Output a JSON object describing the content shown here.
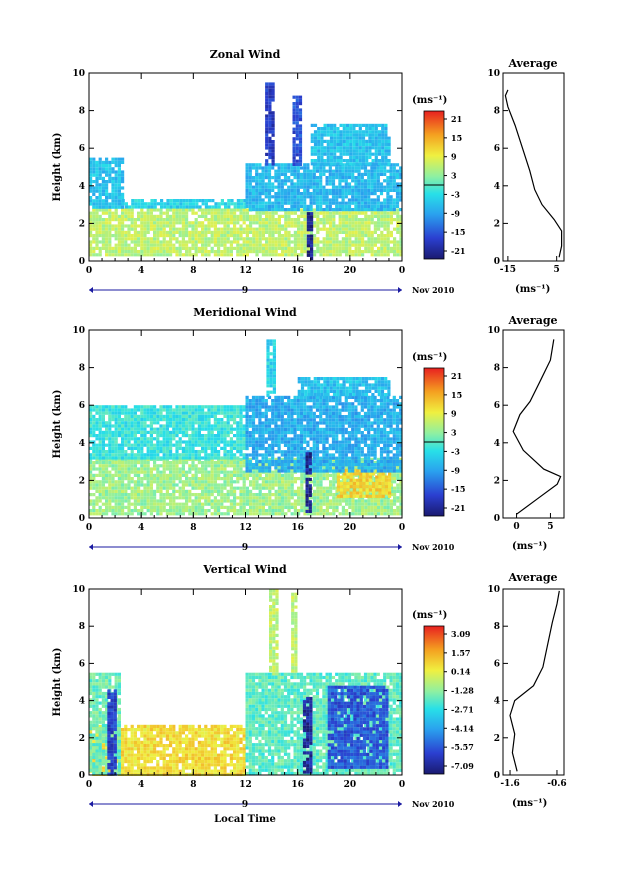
{
  "chart_data": [
    {
      "type": "heatmap",
      "title": "Zonal Wind",
      "ylabel": "Height (km)",
      "xlim": [
        0,
        24
      ],
      "ylim": [
        0,
        10
      ],
      "x_ticks": [
        "0",
        "4",
        "8",
        "12",
        "16",
        "20",
        "0"
      ],
      "y_ticks": [
        "0",
        "2",
        "4",
        "6",
        "8",
        "10"
      ],
      "date_label": "Nov 2010",
      "day_marker": "9",
      "colorbar": {
        "unit": "(ms⁻¹)",
        "ticks": [
          "21",
          "15",
          "9",
          "3",
          "-3",
          "-9",
          "-15",
          "-21"
        ],
        "range": [
          -24,
          24
        ]
      },
      "regions": [
        {
          "t": [
            0,
            24
          ],
          "h": [
            0.4,
            2.8
          ],
          "value": 6
        },
        {
          "t": [
            0,
            2.5
          ],
          "h": [
            2.8,
            5.5
          ],
          "value": -6
        },
        {
          "t": [
            2.5,
            12
          ],
          "h": [
            2.8,
            3.3
          ],
          "value": -4
        },
        {
          "t": [
            12,
            24
          ],
          "h": [
            2.8,
            5.2
          ],
          "value": -7
        },
        {
          "t": [
            13.5,
            14.2
          ],
          "h": [
            5.2,
            9.5
          ],
          "value": -18
        },
        {
          "t": [
            15.6,
            16.2
          ],
          "h": [
            5.2,
            8.8
          ],
          "value": -16
        },
        {
          "t": [
            17,
            23
          ],
          "h": [
            5.2,
            7.3
          ],
          "value": -6
        },
        {
          "t": [
            16.7,
            17.0
          ],
          "h": [
            0.2,
            2.6
          ],
          "value": -22
        }
      ],
      "average_profile": {
        "title": "Average",
        "xlabel": "(ms⁻¹)",
        "x_ticks": [
          "-15",
          "5"
        ],
        "xlim": [
          -17,
          8
        ],
        "points": [
          [
            6,
            0.2
          ],
          [
            7,
            0.8
          ],
          [
            7,
            1.6
          ],
          [
            4,
            2.2
          ],
          [
            -1,
            3.0
          ],
          [
            -4,
            3.8
          ],
          [
            -6,
            4.8
          ],
          [
            -9,
            6.0
          ],
          [
            -12,
            7.2
          ],
          [
            -15,
            8.2
          ],
          [
            -16,
            8.8
          ],
          [
            -15,
            9.1
          ]
        ]
      }
    },
    {
      "type": "heatmap",
      "title": "Meridional Wind",
      "ylabel": "Height (km)",
      "xlim": [
        0,
        24
      ],
      "ylim": [
        0,
        10
      ],
      "x_ticks": [
        "0",
        "4",
        "8",
        "12",
        "16",
        "20",
        "0"
      ],
      "y_ticks": [
        "0",
        "2",
        "4",
        "6",
        "8",
        "10"
      ],
      "date_label": "Nov 2010",
      "day_marker": "9",
      "colorbar": {
        "unit": "(ms⁻¹)",
        "ticks": [
          "21",
          "15",
          "9",
          "3",
          "-3",
          "-9",
          "-15",
          "-21"
        ],
        "range": [
          -24,
          24
        ]
      },
      "regions": [
        {
          "t": [
            0,
            24
          ],
          "h": [
            0.2,
            3.2
          ],
          "value": 4
        },
        {
          "t": [
            19,
            23
          ],
          "h": [
            1.2,
            2.6
          ],
          "value": 12
        },
        {
          "t": [
            0,
            12
          ],
          "h": [
            3.2,
            6.0
          ],
          "value": -2
        },
        {
          "t": [
            12,
            24
          ],
          "h": [
            2.5,
            6.5
          ],
          "value": -8
        },
        {
          "t": [
            13.6,
            14.2
          ],
          "h": [
            6.5,
            9.5
          ],
          "value": -4
        },
        {
          "t": [
            16,
            23
          ],
          "h": [
            6.5,
            7.5
          ],
          "value": -6
        },
        {
          "t": [
            16.6,
            17.0
          ],
          "h": [
            0.3,
            3.5
          ],
          "value": -22
        }
      ],
      "average_profile": {
        "title": "Average",
        "xlabel": "(ms⁻¹)",
        "x_ticks": [
          "0",
          "5"
        ],
        "xlim": [
          -2,
          7
        ],
        "points": [
          [
            0,
            0.2
          ],
          [
            3,
            1.0
          ],
          [
            6,
            1.8
          ],
          [
            6.5,
            2.2
          ],
          [
            4,
            2.6
          ],
          [
            1,
            3.6
          ],
          [
            -0.5,
            4.6
          ],
          [
            0.5,
            5.5
          ],
          [
            2,
            6.2
          ],
          [
            3.5,
            7.3
          ],
          [
            5,
            8.4
          ],
          [
            5.5,
            9.5
          ]
        ]
      }
    },
    {
      "type": "heatmap",
      "title": "Vertical Wind",
      "ylabel": "Height (km)",
      "xlabel": "Local Time",
      "xlim": [
        0,
        24
      ],
      "ylim": [
        0,
        10
      ],
      "x_ticks": [
        "0",
        "4",
        "8",
        "12",
        "16",
        "20",
        "0"
      ],
      "y_ticks": [
        "0",
        "2",
        "4",
        "6",
        "8",
        "10"
      ],
      "date_label": "Nov 2010",
      "day_marker": "9",
      "colorbar": {
        "unit": "(ms⁻¹)",
        "ticks": [
          "3.09",
          "1.57",
          "0.14",
          "-1.28",
          "-2.71",
          "-4.14",
          "-5.57",
          "-7.09"
        ],
        "range": [
          -8.2,
          4.1
        ]
      },
      "regions": [
        {
          "t": [
            0,
            12
          ],
          "h": [
            0.1,
            2.7
          ],
          "value": 0.8
        },
        {
          "t": [
            0,
            2.3
          ],
          "h": [
            0.1,
            5.5
          ],
          "value": -1.8
        },
        {
          "t": [
            1.4,
            2.0
          ],
          "h": [
            0.1,
            4.6
          ],
          "value": -6.5
        },
        {
          "t": [
            12,
            24
          ],
          "h": [
            0.1,
            5.5
          ],
          "value": -2.0
        },
        {
          "t": [
            13.8,
            14.3
          ],
          "h": [
            5.5,
            10
          ],
          "value": -0.5
        },
        {
          "t": [
            15.5,
            15.9
          ],
          "h": [
            5.5,
            9.8
          ],
          "value": -0.5
        },
        {
          "t": [
            16.4,
            16.9
          ],
          "h": [
            0.1,
            4.2
          ],
          "value": -7.5
        },
        {
          "t": [
            18.3,
            22.8
          ],
          "h": [
            0.4,
            4.8
          ],
          "value": -6.0
        }
      ],
      "average_profile": {
        "title": "Average",
        "xlabel": "(ms⁻¹)",
        "x_ticks": [
          "-1.6",
          "-0.6"
        ],
        "xlim": [
          -1.75,
          -0.45
        ],
        "points": [
          [
            -1.45,
            0.2
          ],
          [
            -1.55,
            1.2
          ],
          [
            -1.5,
            2.2
          ],
          [
            -1.6,
            3.2
          ],
          [
            -1.5,
            4.0
          ],
          [
            -1.1,
            4.8
          ],
          [
            -0.9,
            5.8
          ],
          [
            -0.8,
            7.0
          ],
          [
            -0.7,
            8.2
          ],
          [
            -0.6,
            9.2
          ],
          [
            -0.55,
            9.9
          ]
        ]
      }
    }
  ]
}
